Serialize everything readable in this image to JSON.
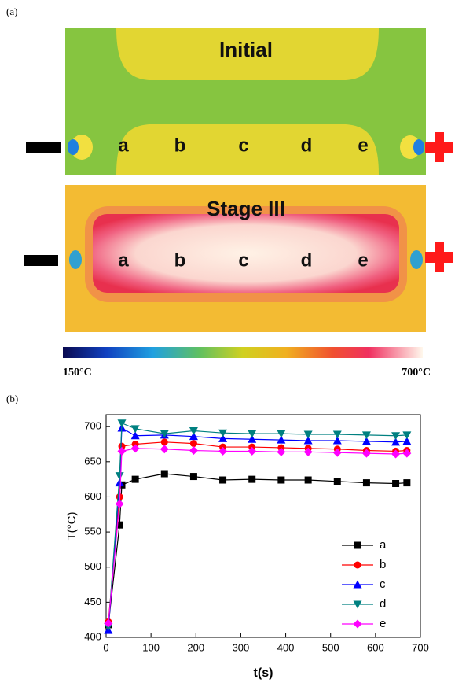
{
  "panel_labels": [
    "(a)",
    "(b)"
  ],
  "images": [
    {
      "title": "Initial",
      "points": [
        "a",
        "b",
        "c",
        "d",
        "e"
      ]
    },
    {
      "title": "Stage III",
      "points": [
        "a",
        "b",
        "c",
        "d",
        "e"
      ]
    }
  ],
  "colorbar": {
    "min_label": "150°C",
    "max_label": "700°C"
  },
  "chart_data": {
    "type": "line",
    "xlabel": "t(s)",
    "ylabel": "T(°C)",
    "x": [
      5,
      30,
      35,
      65,
      130,
      195,
      260,
      325,
      390,
      450,
      515,
      580,
      645,
      670
    ],
    "series": [
      {
        "name": "a",
        "color": "#000000",
        "marker": "square",
        "values": [
          418,
          560,
          617,
          625,
          633,
          629,
          624,
          625,
          624,
          624,
          622,
          620,
          619,
          620
        ]
      },
      {
        "name": "b",
        "color": "#ff0000",
        "marker": "circle",
        "values": [
          422,
          600,
          672,
          675,
          678,
          676,
          671,
          671,
          670,
          669,
          668,
          666,
          665,
          666
        ]
      },
      {
        "name": "c",
        "color": "#0000ff",
        "marker": "triangle-up",
        "values": [
          410,
          620,
          698,
          687,
          688,
          686,
          683,
          682,
          681,
          680,
          680,
          679,
          678,
          679
        ]
      },
      {
        "name": "d",
        "color": "#008080",
        "marker": "triangle-down",
        "values": [
          415,
          630,
          705,
          697,
          690,
          694,
          691,
          690,
          690,
          689,
          689,
          688,
          687,
          688
        ]
      },
      {
        "name": "e",
        "color": "#ff00ff",
        "marker": "diamond",
        "values": [
          420,
          590,
          665,
          669,
          668,
          666,
          665,
          665,
          664,
          664,
          663,
          662,
          661,
          662
        ]
      }
    ],
    "xlim": [
      0,
      700
    ],
    "xticks": [
      0,
      100,
      200,
      300,
      400,
      500,
      600,
      700
    ],
    "ylim": [
      400,
      717
    ],
    "yticks": [
      400,
      450,
      500,
      550,
      600,
      650,
      700
    ],
    "legend": "right"
  }
}
